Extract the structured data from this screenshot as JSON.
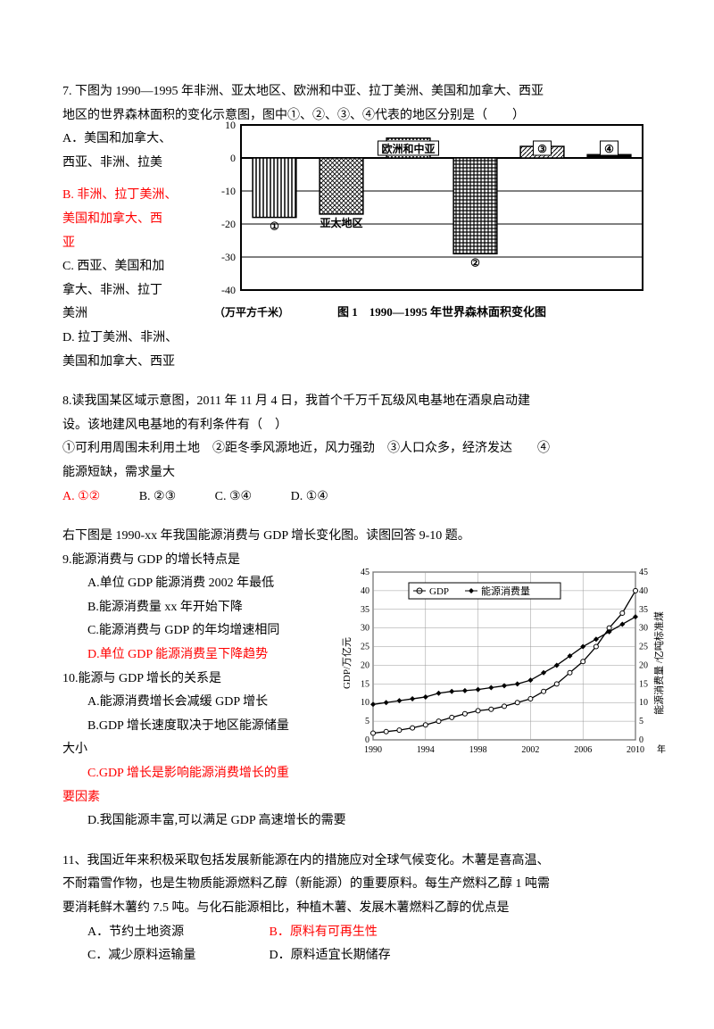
{
  "q7": {
    "stem1": "7. 下图为 1990—1995 年非洲、亚太地区、欧洲和中亚、拉丁美洲、美国和加拿大、西亚",
    "stem2": "地区的世界森林面积的变化示意图，图中①、②、③、④代表的地区分别是（　　）",
    "optA1": "A．美国和加拿大、",
    "optA2": "西亚、非洲、拉美",
    "optB1": "B. 非洲、拉丁美洲、",
    "optB2": "美国和加拿大、西",
    "optB3": "亚",
    "optC1": "C. 西亚、美国和加",
    "optC2": "拿大、非洲、拉丁",
    "optC3": "美洲",
    "optD1": "D. 拉丁美洲、非洲、",
    "optD2": "美国和加拿大、西亚",
    "chart": {
      "type": "bar",
      "ylabel_unit": "（万平方千米）",
      "title": "图 1　1990—1995 年世界森林面积变化图",
      "ylim": [
        -40,
        10
      ],
      "ytick_step": 10,
      "categories": [
        "①",
        "亚太地区",
        "欧洲和中亚",
        "②",
        "③",
        "④"
      ],
      "values": [
        -18,
        -17,
        6,
        -29,
        3.5,
        1
      ],
      "label_pos": [
        "bottom",
        "bottom",
        "top",
        "bottom",
        "top",
        "top"
      ],
      "fills": [
        "stripes",
        "cross",
        "dots",
        "grid",
        "diag",
        "solid"
      ],
      "grid_color": "#000",
      "bg": "#fff",
      "font": 12
    }
  },
  "q8": {
    "stem1": "8.读我国某区域示意图，2011 年 11 月 4 日，我首个千万千瓦级风电基地在酒泉启动建",
    "stem2": "设。该地建风电基地的有利条件有（　）",
    "conds": "①可利用周围未利用土地　②距冬季风源地近，风力强劲　③人口众多，经济发达　　④",
    "conds2": "能源短缺，需求量大",
    "optA": "A. ①②",
    "optB": "B. ②③",
    "optC": "C. ③④",
    "optD": "D. ①④"
  },
  "intro9": "右下图是 1990-xx 年我国能源消费与 GDP 增长变化图。读图回答 9-10 题。",
  "q9": {
    "stem": "9.能源消费与 GDP 的增长特点是",
    "A": "A.单位 GDP 能源消费 2002 年最低",
    "B": "B.能源消费量 xx 年开始下降",
    "C": "C.能源消费与 GDP 的年均增速相同",
    "D": "D.单位 GDP 能源消费呈下降趋势"
  },
  "q10": {
    "stem": "10.能源与 GDP 增长的关系是",
    "A": "A.能源消费增长会减缓 GDP 增长",
    "B1": "B.GDP 增长速度取决于地区能源储量",
    "B2": "大小",
    "C1": "C.GDP 增长是影响能源消费增长的重",
    "C2": "要因素",
    "D": "D.我国能源丰富,可以满足 GDP 高速增长的需要"
  },
  "chart2": {
    "type": "line",
    "xlabel": "年",
    "ylabel_left": "GDP/万亿元",
    "ylabel_right": "能源消费量 /亿吨标准煤",
    "xlim": [
      1990,
      2010
    ],
    "xtick_step": 4,
    "ylim": [
      0,
      45
    ],
    "ytick_step": 5,
    "series": [
      {
        "name": "GDP",
        "marker": "hollow",
        "color": "#000",
        "x": [
          1990,
          1991,
          1992,
          1993,
          1994,
          1995,
          1996,
          1997,
          1998,
          1999,
          2000,
          2001,
          2002,
          2003,
          2004,
          2005,
          2006,
          2007,
          2008,
          2009,
          2010
        ],
        "y": [
          1.8,
          2.2,
          2.6,
          3.2,
          4,
          5,
          6,
          7,
          7.8,
          8.2,
          9,
          10,
          11,
          13,
          15,
          18,
          21,
          25,
          30,
          34,
          40
        ]
      },
      {
        "name": "能源消费量",
        "marker": "solid",
        "color": "#000",
        "x": [
          1990,
          1991,
          1992,
          1993,
          1994,
          1995,
          1996,
          1997,
          1998,
          1999,
          2000,
          2001,
          2002,
          2003,
          2004,
          2005,
          2006,
          2007,
          2008,
          2009,
          2010
        ],
        "y": [
          9.5,
          10,
          10.5,
          11,
          11.5,
          12.5,
          13,
          13.2,
          13.5,
          14,
          14.5,
          15,
          16,
          18,
          20,
          22.5,
          25,
          27,
          29,
          31,
          33
        ]
      }
    ],
    "legend": {
      "items": [
        "GDP",
        "能源消费量"
      ]
    },
    "grid_color": "#999",
    "bg": "#fff"
  },
  "q11": {
    "stem1": "11、我国近年来积极采取包括发展新能源在内的措施应对全球气候变化。木薯是喜高温、",
    "stem2": "不耐霜雪作物，也是生物质能源燃料乙醇（新能源）的重要原料。每生产燃料乙醇 1 吨需",
    "stem3": "要消耗鲜木薯约 7.5 吨。与化石能源相比，种植木薯、发展木薯燃料乙醇的优点是",
    "A": "A．节约土地资源",
    "B": "B．原料有可再生性",
    "C": "C．减少原料运输量",
    "D": "D．原料适宜长期储存"
  }
}
